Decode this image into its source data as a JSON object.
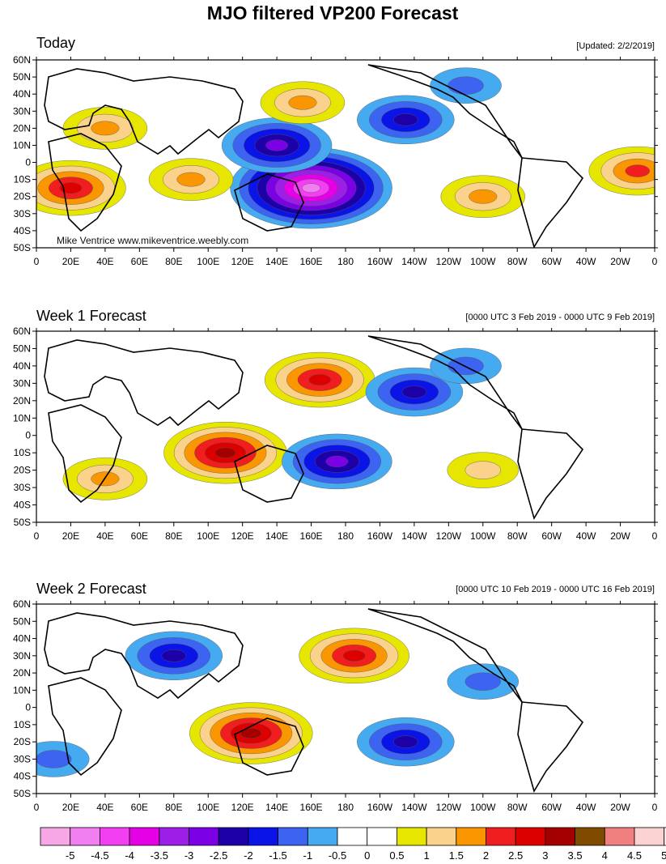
{
  "title": "MJO filtered VP200 Forecast",
  "watermark": "Mike Ventrice www.mikeventrice.weebly.com",
  "lon_ticks": [
    "0",
    "20E",
    "40E",
    "60E",
    "80E",
    "100E",
    "120E",
    "140E",
    "160E",
    "180",
    "160W",
    "140W",
    "120W",
    "100W",
    "80W",
    "60W",
    "40W",
    "20W",
    "0"
  ],
  "lat_ticks": [
    "60N",
    "50N",
    "40N",
    "30N",
    "20N",
    "10N",
    "0",
    "10S",
    "20S",
    "30S",
    "40S",
    "50S"
  ],
  "colorbar": {
    "labels": [
      "-5",
      "-4.5",
      "-4",
      "-3.5",
      "-3",
      "-2.5",
      "-2",
      "-1.5",
      "-1",
      "-0.5",
      "0",
      "0.5",
      "1",
      "1.5",
      "2",
      "2.5",
      "3",
      "3.5",
      "4",
      "4.5",
      "5"
    ],
    "colors": [
      "#f7a6e6",
      "#f27ff0",
      "#f23ff2",
      "#e600e6",
      "#9d1ee6",
      "#7b00e6",
      "#1e00a8",
      "#0a14e6",
      "#3c64f0",
      "#46aaf0",
      "#ffffff",
      "#ffffff",
      "#e6e600",
      "#fad28c",
      "#fa9600",
      "#f01e1e",
      "#dc0000",
      "#a50000",
      "#7f4b00",
      "#f08080",
      "#fad2d2",
      "#ffebee"
    ]
  },
  "chart_data": [
    {
      "type": "heatmap",
      "title": "Today",
      "subtitle": "[Updated: 2/2/2019]",
      "variable": "VP200 anomaly",
      "lon_range": [
        0,
        360
      ],
      "lat_range": [
        -50,
        60
      ],
      "centers": [
        {
          "lon": 160,
          "lat": -15,
          "value": -4.5
        },
        {
          "lon": 140,
          "lat": 10,
          "value": -2.5
        },
        {
          "lon": 215,
          "lat": 25,
          "value": -2.0
        },
        {
          "lon": 250,
          "lat": 45,
          "value": -1.0
        },
        {
          "lon": 20,
          "lat": -15,
          "value": 2.5
        },
        {
          "lon": 40,
          "lat": 20,
          "value": 1.5
        },
        {
          "lon": 350,
          "lat": -5,
          "value": 2.0
        },
        {
          "lon": 90,
          "lat": -10,
          "value": 1.5
        },
        {
          "lon": 155,
          "lat": 35,
          "value": 1.5
        },
        {
          "lon": 260,
          "lat": -20,
          "value": 1.5
        }
      ]
    },
    {
      "type": "heatmap",
      "title": "Week 1 Forecast",
      "subtitle": "[0000 UTC 3 Feb 2019 - 0000 UTC 9 Feb 2019]",
      "variable": "VP200 anomaly",
      "lon_range": [
        0,
        360
      ],
      "lat_range": [
        -50,
        60
      ],
      "centers": [
        {
          "lon": 110,
          "lat": -10,
          "value": 3.0
        },
        {
          "lon": 165,
          "lat": 32,
          "value": 2.5
        },
        {
          "lon": 40,
          "lat": -25,
          "value": 1.5
        },
        {
          "lon": 175,
          "lat": -15,
          "value": -2.5
        },
        {
          "lon": 220,
          "lat": 25,
          "value": -2.0
        },
        {
          "lon": 250,
          "lat": 40,
          "value": -1.0
        },
        {
          "lon": 260,
          "lat": -20,
          "value": 1.0
        }
      ]
    },
    {
      "type": "heatmap",
      "title": "Week 2 Forecast",
      "subtitle": "[0000 UTC 10 Feb 2019 - 0000 UTC 16 Feb 2019]",
      "variable": "VP200 anomaly",
      "lon_range": [
        0,
        360
      ],
      "lat_range": [
        -50,
        60
      ],
      "centers": [
        {
          "lon": 125,
          "lat": -15,
          "value": 3.0
        },
        {
          "lon": 185,
          "lat": 30,
          "value": 2.5
        },
        {
          "lon": 80,
          "lat": 30,
          "value": -2.0
        },
        {
          "lon": 215,
          "lat": -20,
          "value": -2.0
        },
        {
          "lon": 260,
          "lat": 15,
          "value": -1.0
        },
        {
          "lon": 10,
          "lat": -30,
          "value": -1.0
        }
      ]
    }
  ]
}
